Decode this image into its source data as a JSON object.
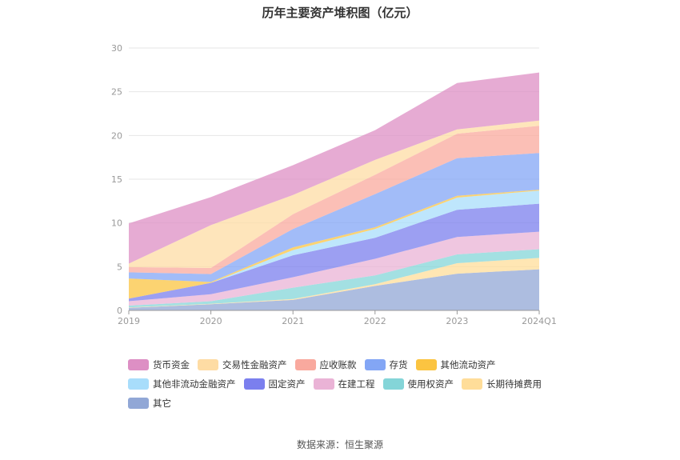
{
  "chart_data": {
    "type": "area",
    "stacked": true,
    "title": "历年主要资产堆积图（亿元）",
    "categories": [
      "2019",
      "2020",
      "2021",
      "2022",
      "2023",
      "2024Q1"
    ],
    "y_ticks": [
      "0",
      "5",
      "10",
      "15",
      "20",
      "25",
      "30"
    ],
    "ylim": [
      0,
      30
    ],
    "grid": true,
    "legend_position": "bottom",
    "series": [
      {
        "name": "其它",
        "color": "#91a7d6",
        "values": [
          0.3,
          0.7,
          1.2,
          2.8,
          4.2,
          4.7
        ]
      },
      {
        "name": "长期待摊费用",
        "color": "#ffdd99",
        "values": [
          0.05,
          0.05,
          0.1,
          0.2,
          1.2,
          1.3
        ]
      },
      {
        "name": "使用权资产",
        "color": "#84d5d8",
        "values": [
          0.2,
          0.3,
          1.3,
          1.0,
          1.0,
          1.0
        ]
      },
      {
        "name": "在建工程",
        "color": "#eab3d6",
        "values": [
          0.5,
          0.8,
          1.2,
          1.9,
          2.0,
          2.0
        ]
      },
      {
        "name": "固定资产",
        "color": "#7b7fee",
        "values": [
          0.3,
          1.3,
          2.5,
          2.4,
          3.1,
          3.2
        ]
      },
      {
        "name": "其他非流动金融资产",
        "color": "#a8ddfb",
        "values": [
          0.0,
          0.0,
          0.6,
          1.0,
          1.4,
          1.5
        ]
      },
      {
        "name": "其他流动资产",
        "color": "#fbc441",
        "values": [
          2.3,
          0.1,
          0.3,
          0.2,
          0.2,
          0.1
        ]
      },
      {
        "name": "存货",
        "color": "#83a6f5",
        "values": [
          0.7,
          0.9,
          2.1,
          3.8,
          4.3,
          4.2
        ]
      },
      {
        "name": "应收账款",
        "color": "#f9a99e",
        "values": [
          0.6,
          0.7,
          1.7,
          2.2,
          2.8,
          3.1
        ]
      },
      {
        "name": "交易性金融资产",
        "color": "#fedca4",
        "values": [
          0.4,
          4.9,
          2.2,
          1.7,
          0.5,
          0.6
        ]
      },
      {
        "name": "货币资金",
        "color": "#dd8fc4",
        "values": [
          4.6,
          3.2,
          3.4,
          3.4,
          5.3,
          5.5
        ]
      }
    ],
    "source": "数据来源：恒生聚源"
  }
}
